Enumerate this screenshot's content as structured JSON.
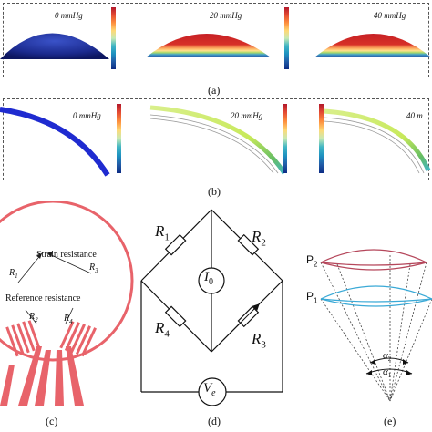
{
  "panel_a": {
    "label": "(a)",
    "items": [
      {
        "pressure": "0 mmHg"
      },
      {
        "pressure": "20 mmHg"
      },
      {
        "pressure": "40 mmHg"
      }
    ]
  },
  "panel_b": {
    "label": "(b)",
    "items": [
      {
        "pressure": "0 mmHg"
      },
      {
        "pressure": "20 mmHg"
      },
      {
        "pressure": "40 m"
      }
    ]
  },
  "panel_c": {
    "label": "(c)",
    "strain_label": "Strain resistance",
    "reference_label": "Reference resistance",
    "r1": "R",
    "r1_sub": "1",
    "r3": "R",
    "r3_sub": "3",
    "r2": "R",
    "r2_sub": "2",
    "r4": "R",
    "r4_sub": "4",
    "color": "#e8636a"
  },
  "panel_d": {
    "label": "(d)",
    "r1": "R",
    "r1_sub": "1",
    "r2": "R",
    "r2_sub": "2",
    "r3": "R",
    "r3_sub": "3",
    "r4": "R",
    "r4_sub": "4",
    "current": "I",
    "current_sub": "0",
    "voltage": "V",
    "voltage_sub": "e"
  },
  "panel_e": {
    "label": "(e)",
    "p2": "P",
    "p2_sub": "2",
    "p1": "P",
    "p1_sub": "1",
    "alpha2": "α",
    "alpha2_sub": "2",
    "alpha1": "α",
    "alpha1_sub": "1",
    "p2_color": "#b5475b",
    "p1_color": "#3aa9d6"
  }
}
